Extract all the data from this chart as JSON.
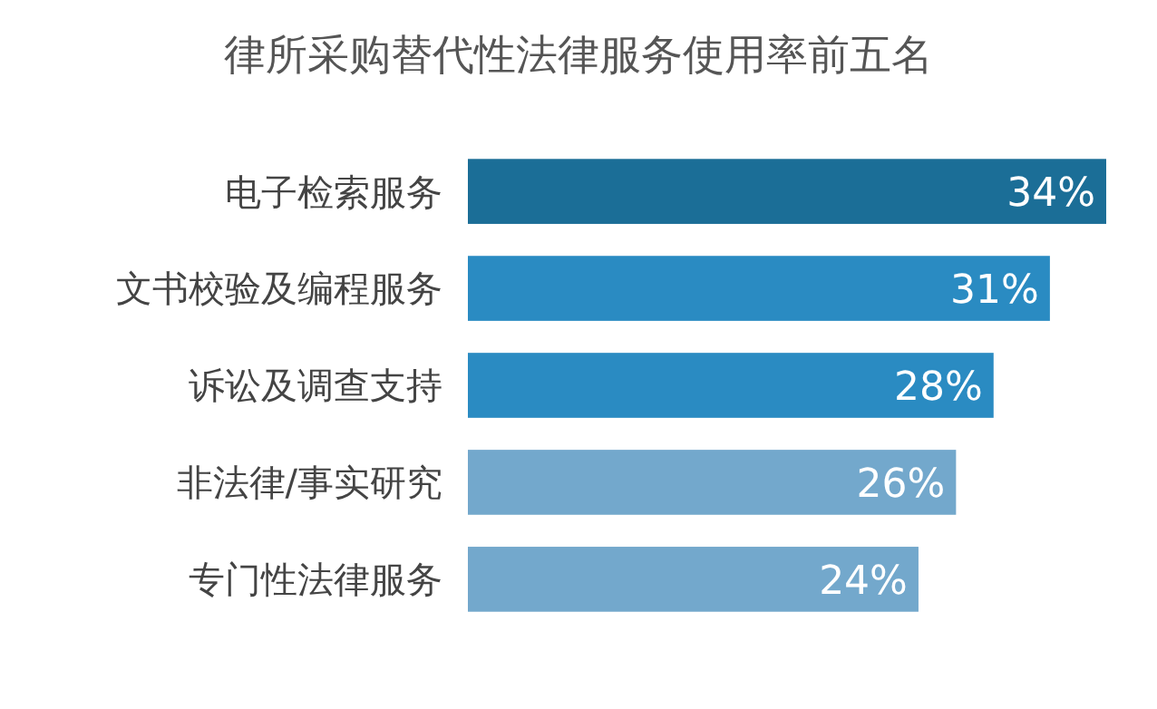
{
  "chart_data": {
    "type": "bar",
    "orientation": "horizontal",
    "title": "律所采购替代性法律服务使用率前五名",
    "categories": [
      "电子检索服务",
      "文书校验及编程服务",
      "诉讼及调查支持",
      "非法律/事实研究",
      "专门性法律服务"
    ],
    "values": [
      34,
      31,
      28,
      26,
      24
    ],
    "colors": [
      "#1b6e97",
      "#2a8bc2",
      "#2a8bc2",
      "#73a8cc",
      "#73a8cc"
    ],
    "value_labels": [
      "34%",
      "31%",
      "28%",
      "26%",
      "24%"
    ]
  }
}
